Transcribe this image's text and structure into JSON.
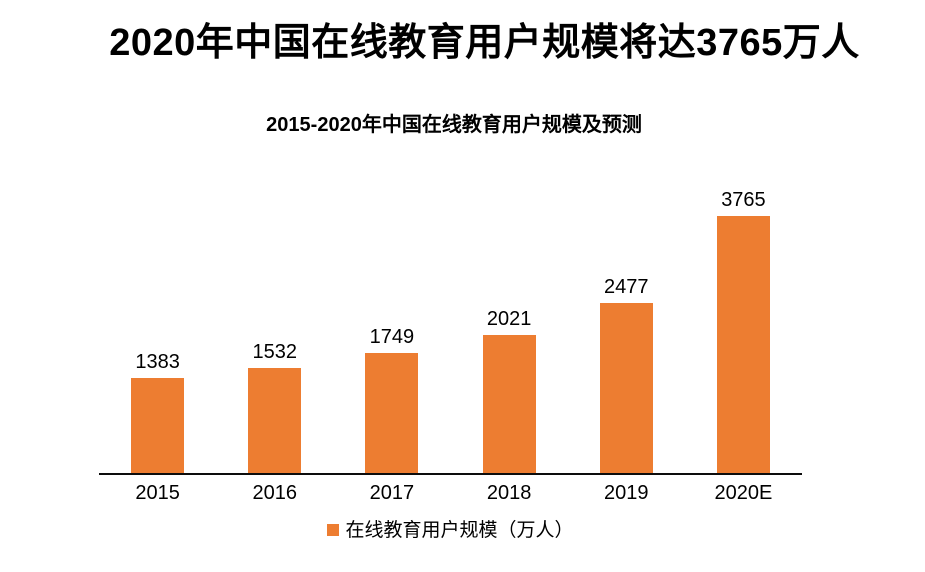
{
  "page": {
    "headline": "2020年中国在线教育用户规模将达3765万人"
  },
  "chart_data": {
    "type": "bar",
    "title": "2015-2020年中国在线教育用户规模及预测",
    "categories": [
      "2015",
      "2016",
      "2017",
      "2018",
      "2019",
      "2020E"
    ],
    "values": [
      1383,
      1532,
      1749,
      2021,
      2477,
      3765
    ],
    "xlabel": "",
    "ylabel": "",
    "ylim": [
      0,
      4000
    ],
    "grid": false,
    "data_labels": true,
    "axis_visible": "x-only",
    "legend": [
      {
        "label": "在线教育用户规模（万人）",
        "position": "bottom"
      }
    ],
    "colors": {
      "bar": "#ED7D31",
      "headline_text": "#000000",
      "label_text": "#000000",
      "axis_line": "#0d0d0d",
      "background": "#FFFFFF"
    }
  }
}
